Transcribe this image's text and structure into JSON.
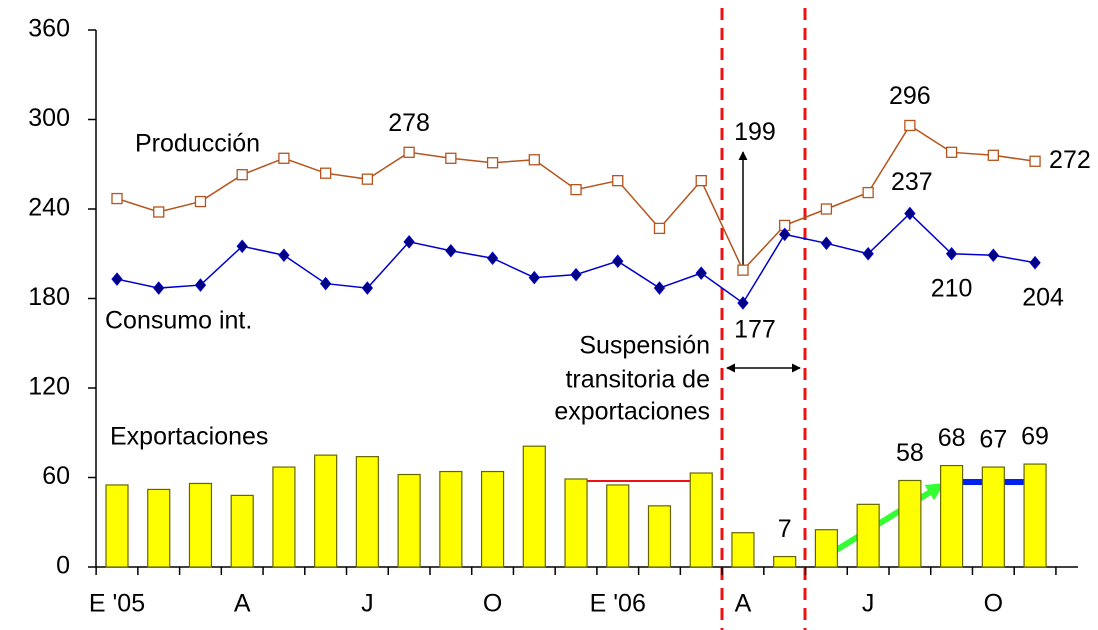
{
  "chart_data": {
    "type": "bar-line",
    "categories": [
      "E '05",
      null,
      null,
      "A",
      null,
      null,
      "J",
      null,
      null,
      "O",
      null,
      null,
      "E '06",
      null,
      null,
      "A",
      null,
      null,
      "J",
      null,
      null,
      "O",
      null
    ],
    "ylim": [
      0,
      360
    ],
    "yticks": [
      0,
      60,
      120,
      180,
      240,
      300,
      360
    ],
    "series": [
      {
        "name": "Exportaciones",
        "kind": "bar",
        "color": "#ffff00",
        "values": [
          55,
          52,
          56,
          48,
          67,
          75,
          74,
          62,
          64,
          64,
          81,
          59,
          55,
          41,
          63,
          23,
          7,
          25,
          42,
          58,
          68,
          67,
          69
        ],
        "value_labels": [
          null,
          null,
          null,
          null,
          null,
          null,
          null,
          null,
          null,
          null,
          null,
          null,
          null,
          null,
          null,
          null,
          "7",
          null,
          null,
          "58",
          "68",
          "67",
          "69"
        ]
      },
      {
        "name": "Producción",
        "kind": "line",
        "color": "#b5541c",
        "values": [
          247,
          238,
          245,
          263,
          274,
          264,
          260,
          278,
          274,
          271,
          273,
          253,
          259,
          227,
          259,
          199,
          229,
          240,
          251,
          296,
          278,
          276,
          272
        ],
        "value_labels": [
          null,
          null,
          null,
          null,
          null,
          null,
          null,
          "278",
          null,
          null,
          null,
          null,
          null,
          null,
          null,
          "199",
          null,
          null,
          null,
          "296",
          null,
          null,
          "272"
        ]
      },
      {
        "name": "Consumo int.",
        "kind": "line",
        "color": "#0000cc",
        "values": [
          193,
          187,
          189,
          215,
          209,
          190,
          187,
          218,
          212,
          207,
          194,
          196,
          205,
          187,
          197,
          177,
          223,
          217,
          210,
          237,
          210,
          209,
          204
        ],
        "value_labels": [
          null,
          null,
          null,
          null,
          null,
          null,
          null,
          null,
          null,
          null,
          null,
          null,
          null,
          null,
          null,
          "177",
          null,
          null,
          null,
          "237",
          "210",
          null,
          "204"
        ]
      }
    ],
    "annotation": [
      "Suspensión",
      "transitoria de",
      "exportaciones"
    ]
  }
}
